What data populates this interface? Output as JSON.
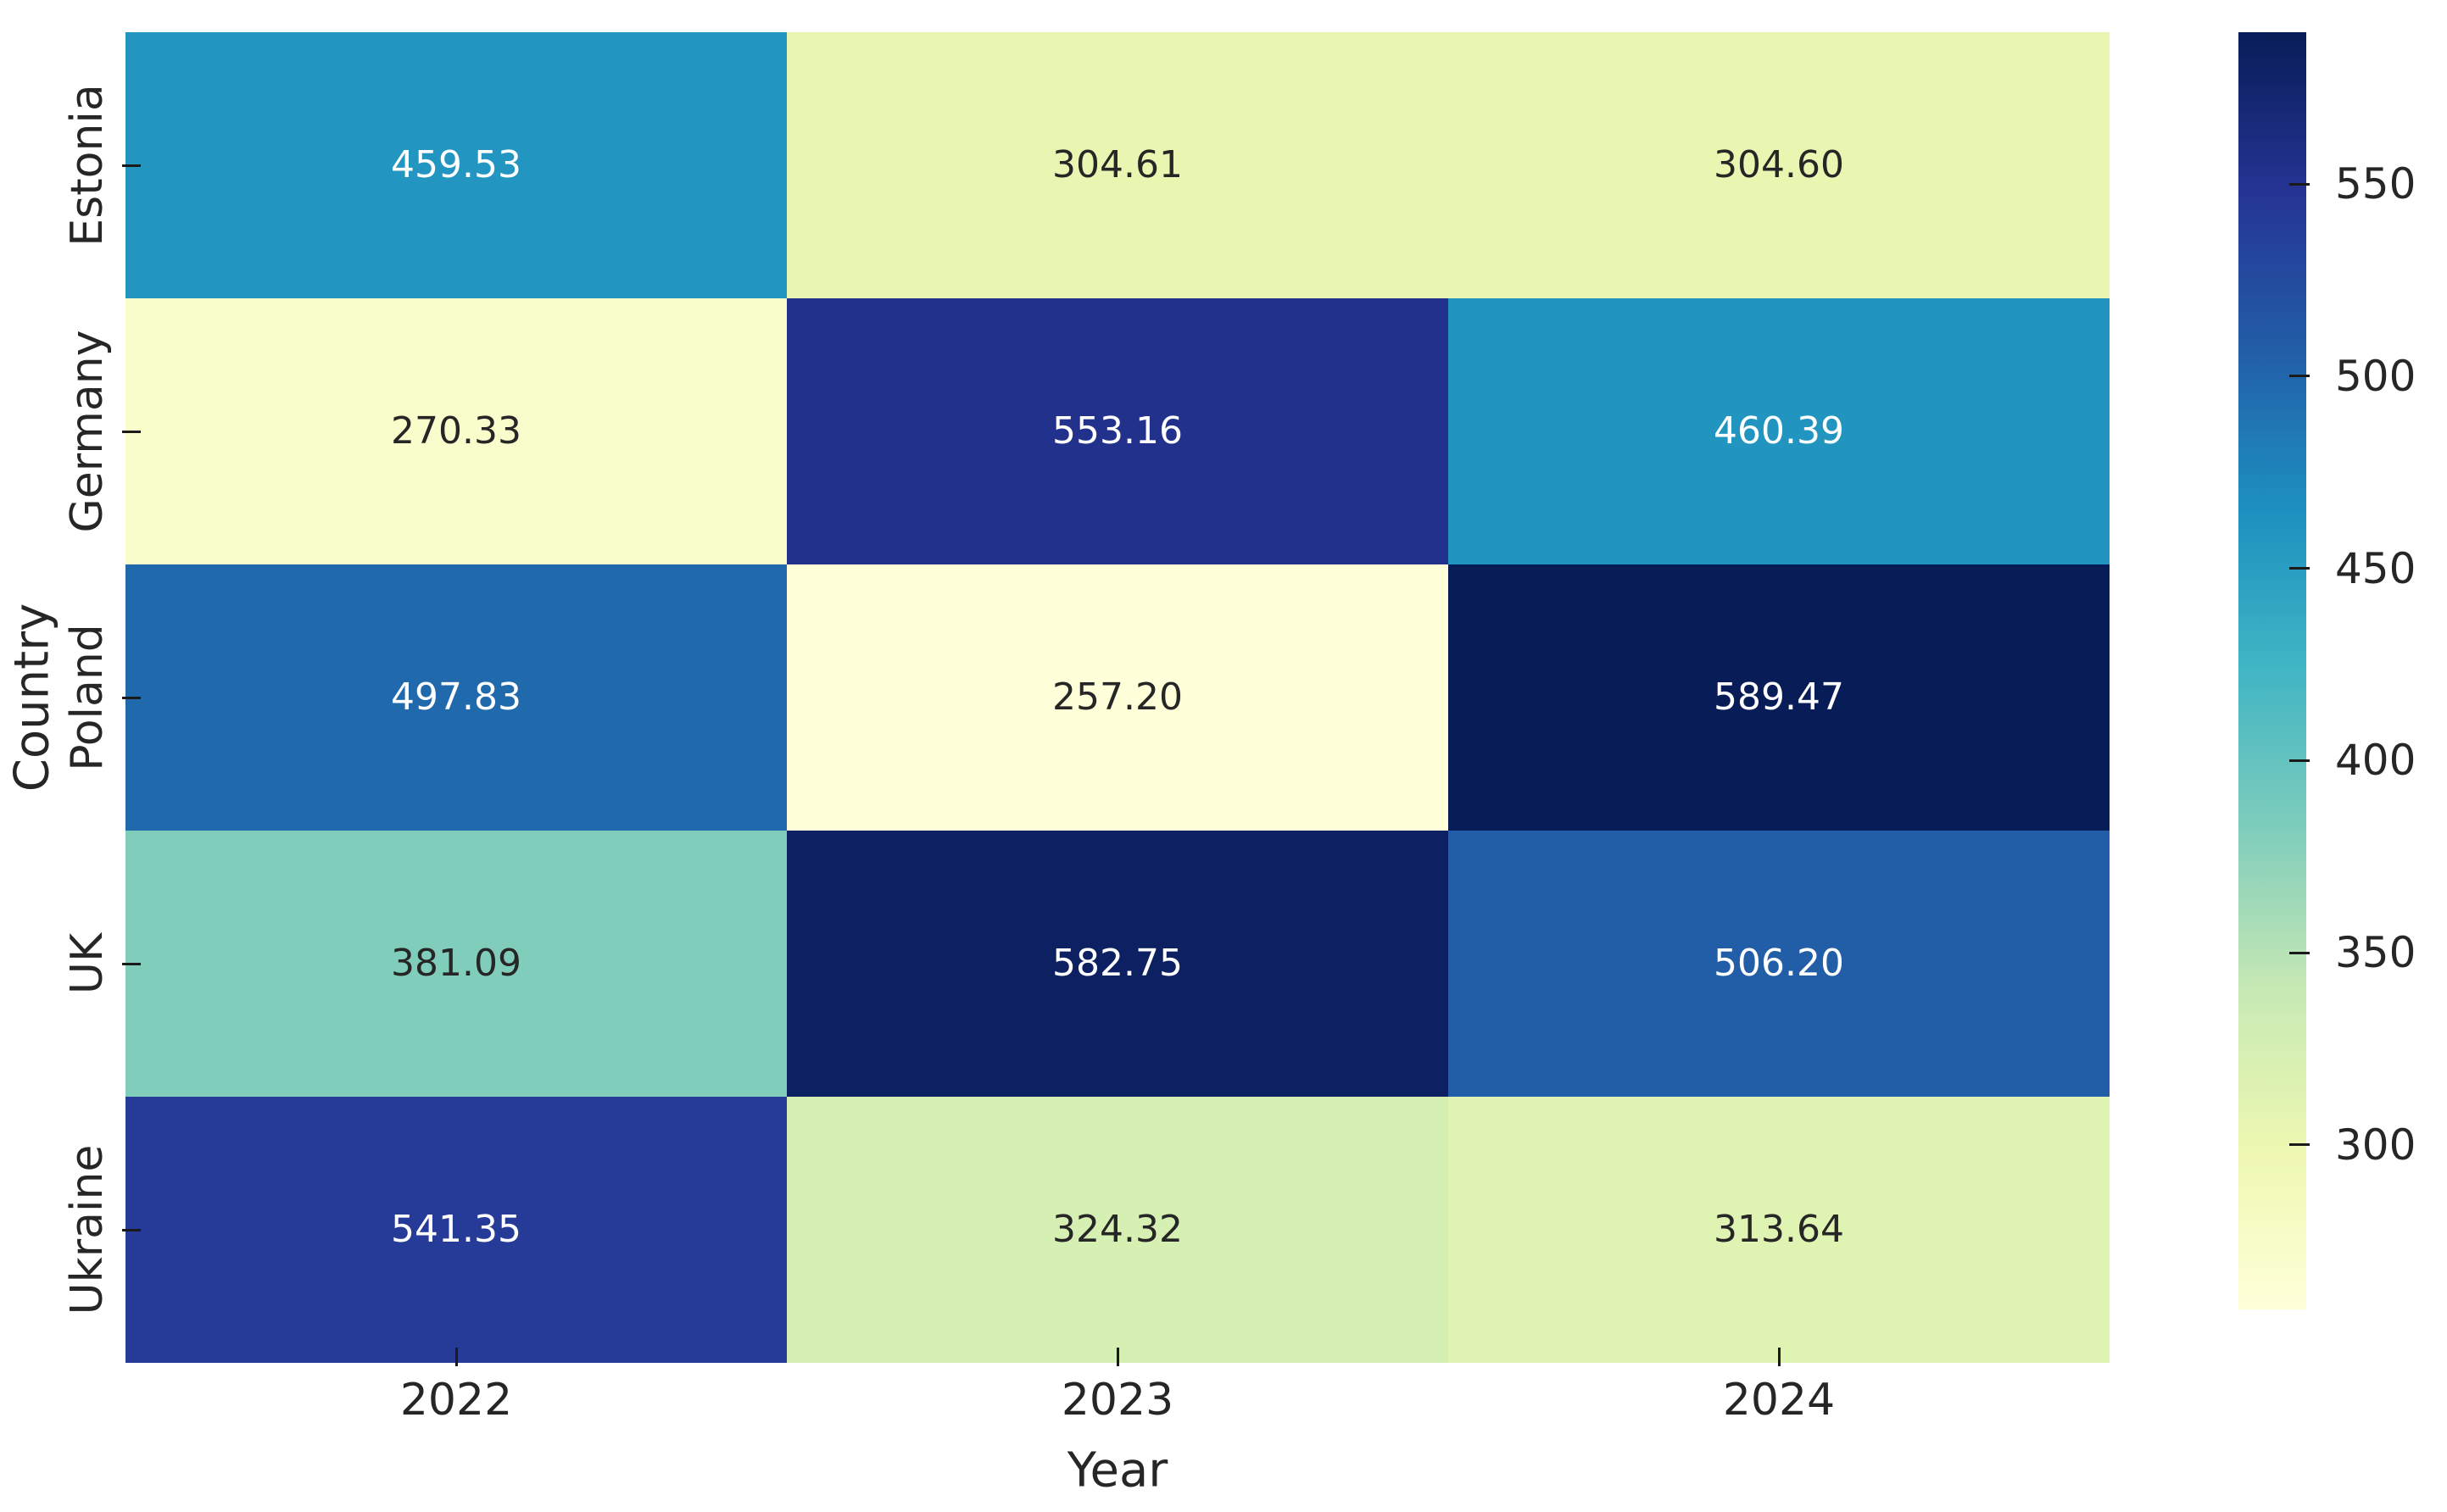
{
  "chart_data": {
    "type": "heatmap",
    "title": "",
    "xlabel": "Year",
    "ylabel": "Country",
    "x_categories": [
      "2022",
      "2023",
      "2024"
    ],
    "y_categories": [
      "Estonia",
      "Germany",
      "Poland",
      "UK",
      "Ukraine"
    ],
    "values": [
      [
        459.53,
        304.61,
        304.6
      ],
      [
        270.33,
        553.16,
        460.39
      ],
      [
        497.83,
        257.2,
        589.47
      ],
      [
        381.09,
        582.75,
        506.2
      ],
      [
        541.35,
        324.32,
        313.64
      ]
    ],
    "cell_colors": [
      [
        "#2296C0",
        "#E8F6B1",
        "#E8F6B1"
      ],
      [
        "#F9FDCC",
        "#21318C",
        "#2195C0"
      ],
      [
        "#2169AD",
        "#FFFFD9",
        "#081D58"
      ],
      [
        "#80CDBB",
        "#0D2162",
        "#225EA8"
      ],
      [
        "#253B97",
        "#D6EFB3",
        "#DFF3B2"
      ]
    ],
    "annotation_text_dark": "#262626",
    "annotation_text_light": "#ffffff",
    "vmin": 257.2,
    "vmax": 589.47,
    "colormap_name": "YlGnBu",
    "colormap_stops_top_to_bottom": [
      "#081d58",
      "#253494",
      "#225ea8",
      "#1d91c0",
      "#41b6c4",
      "#7fcdbb",
      "#c7e9b4",
      "#edf8b1",
      "#ffffd9"
    ],
    "colorbar_ticks": [
      {
        "value": 550,
        "label": "550"
      },
      {
        "value": 500,
        "label": "500"
      },
      {
        "value": 450,
        "label": "450"
      },
      {
        "value": 400,
        "label": "400"
      },
      {
        "value": 350,
        "label": "350"
      },
      {
        "value": 300,
        "label": "300"
      }
    ],
    "legend_position": "right-colorbar",
    "grid": false
  }
}
